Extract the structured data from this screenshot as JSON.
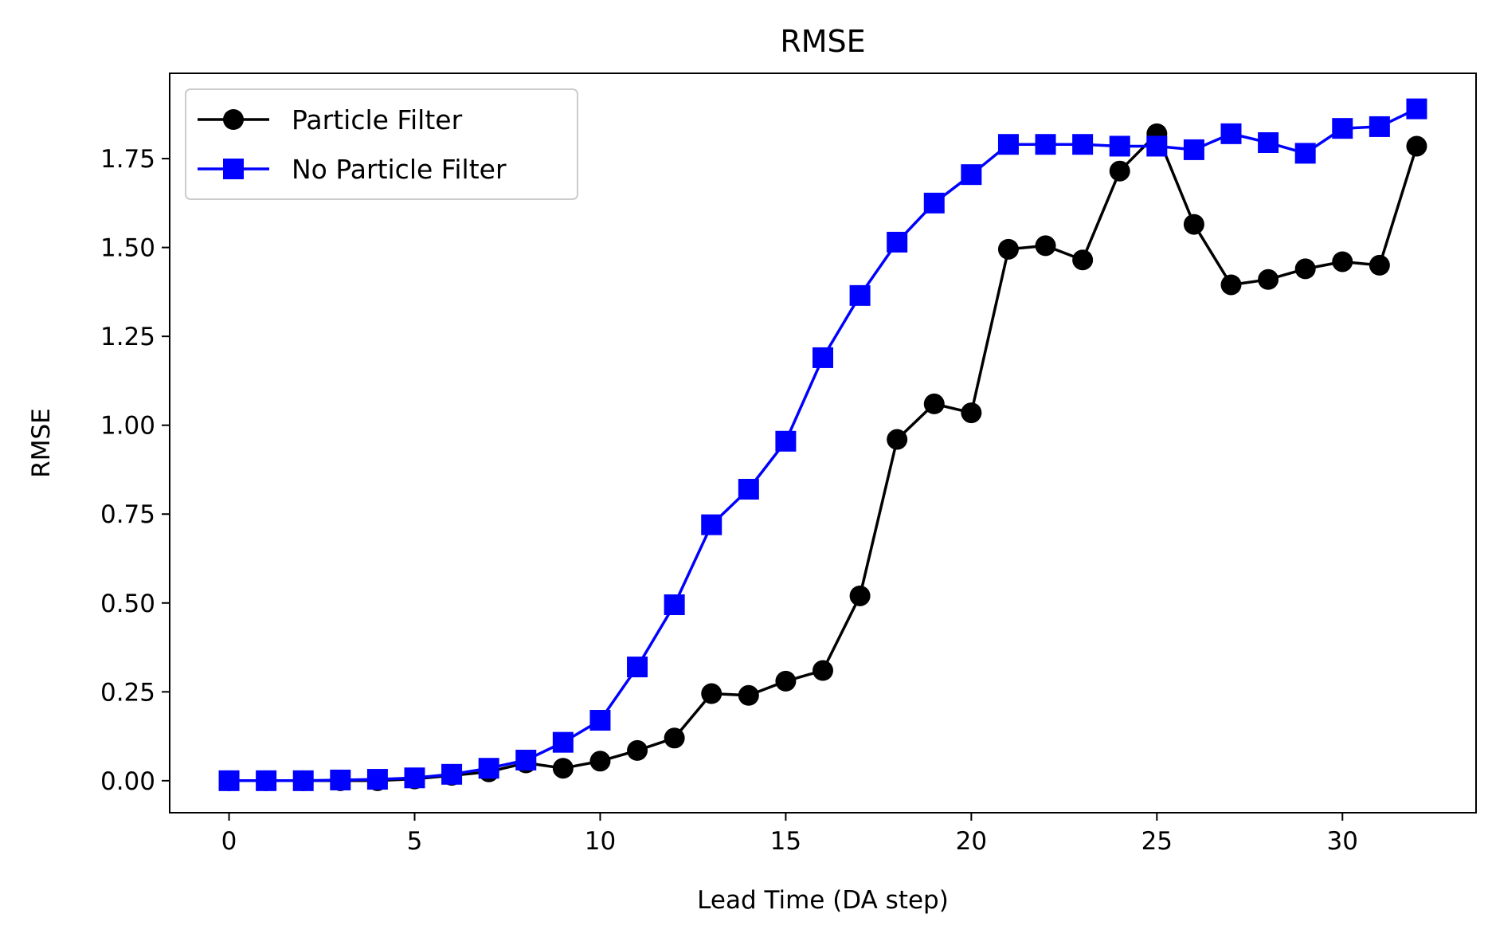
{
  "chart_data": {
    "type": "line",
    "title": "RMSE",
    "xlabel": "Lead Time (DA step)",
    "ylabel": "RMSE",
    "xlim": [
      -1.6,
      33.6
    ],
    "ylim": [
      -0.09,
      1.99
    ],
    "xticks": [
      0,
      5,
      10,
      15,
      20,
      25,
      30
    ],
    "xtick_labels": [
      "0",
      "5",
      "10",
      "15",
      "20",
      "25",
      "30"
    ],
    "yticks": [
      0.0,
      0.25,
      0.5,
      0.75,
      1.0,
      1.25,
      1.5,
      1.75
    ],
    "ytick_labels": [
      "0.00",
      "0.25",
      "0.50",
      "0.75",
      "1.00",
      "1.25",
      "1.50",
      "1.75"
    ],
    "grid": false,
    "legend_position": "top-left",
    "x": [
      0,
      1,
      2,
      3,
      4,
      5,
      6,
      7,
      8,
      9,
      10,
      11,
      12,
      13,
      14,
      15,
      16,
      17,
      18,
      19,
      20,
      21,
      22,
      23,
      24,
      25,
      26,
      27,
      28,
      29,
      30,
      31,
      32
    ],
    "series": [
      {
        "name": "Particle Filter",
        "color": "#000000",
        "marker": "circle",
        "values": [
          0.0,
          0.0,
          0.0,
          0.0,
          0.0,
          0.005,
          0.015,
          0.025,
          0.05,
          0.035,
          0.055,
          0.085,
          0.12,
          0.245,
          0.24,
          0.28,
          0.31,
          0.52,
          0.96,
          1.06,
          1.035,
          1.495,
          1.505,
          1.465,
          1.715,
          1.82,
          1.565,
          1.395,
          1.41,
          1.44,
          1.46,
          1.45,
          1.785
        ]
      },
      {
        "name": "No Particle Filter",
        "color": "#0000ff",
        "marker": "square",
        "values": [
          0.0,
          0.0,
          0.0,
          0.002,
          0.004,
          0.008,
          0.018,
          0.035,
          0.058,
          0.108,
          0.17,
          0.32,
          0.495,
          0.72,
          0.82,
          0.955,
          1.19,
          1.365,
          1.515,
          1.625,
          1.705,
          1.79,
          1.79,
          1.79,
          1.785,
          1.785,
          1.775,
          1.82,
          1.795,
          1.765,
          1.835,
          1.84,
          1.89
        ]
      }
    ]
  }
}
